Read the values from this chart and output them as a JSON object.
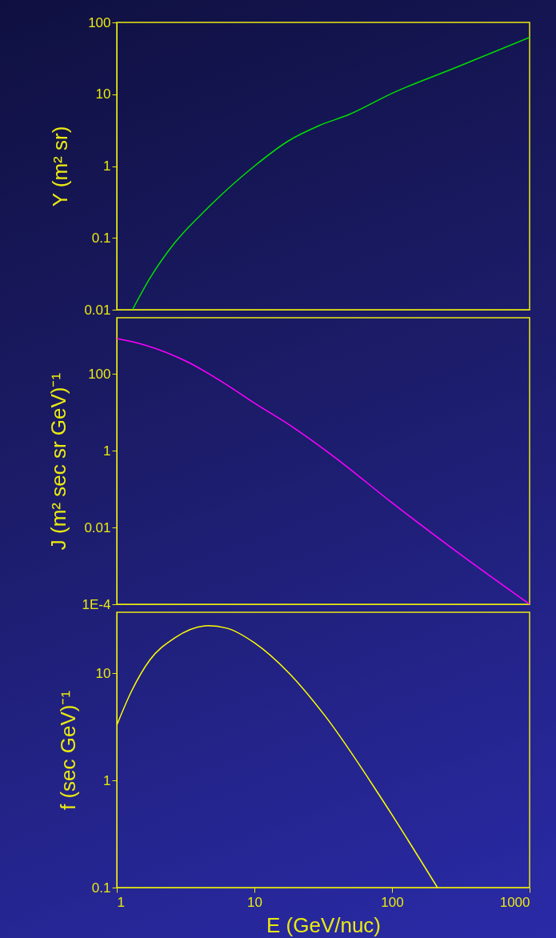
{
  "chart_data": [
    {
      "type": "line",
      "ylabel": "Y (m² sr)",
      "log": "xy",
      "xlim": [
        1,
        1000
      ],
      "xticks": [
        1,
        10,
        100,
        1000
      ],
      "ylim": [
        0.01,
        100
      ],
      "yticks": [
        0.01,
        0.1,
        1,
        10,
        100
      ],
      "tick_labels": "y",
      "series": [
        {
          "color": "#00e000",
          "x": [
            1.3,
            1.74,
            2.63,
            4.39,
            10,
            17.6,
            29.5,
            49.2,
            100,
            297,
            1000
          ],
          "values": [
            0.01,
            0.0274,
            0.085,
            0.241,
            1.0,
            2.23,
            3.65,
            5.26,
            10.3,
            23.9,
            62
          ]
        }
      ]
    },
    {
      "type": "line",
      "ylabel": "J (m² sec sr GeV)⁻¹",
      "log": "xy",
      "xlim": [
        1,
        1000
      ],
      "xticks": [
        1,
        10,
        100,
        1000
      ],
      "ylim": [
        0.0001,
        2900
      ],
      "yticks": [
        {
          "value": 0.0001,
          "label": "1E-4"
        },
        0.01,
        1,
        100
      ],
      "tick_labels": "y",
      "series": [
        {
          "color": "#ff00ff",
          "x": [
            1,
            1.57,
            3.23,
            6.3,
            10,
            18.5,
            38,
            100,
            297,
            1000
          ],
          "values": [
            830,
            575,
            209,
            52,
            17.4,
            4.37,
            0.69,
            0.044,
            0.0023,
            0.0001
          ]
        }
      ]
    },
    {
      "type": "line",
      "ylabel": "f (sec GeV)⁻¹",
      "xlabel": "E (GeV/nuc)",
      "log": "xy",
      "xlim": [
        1,
        1000
      ],
      "xticks": [
        1,
        10,
        100,
        1000
      ],
      "ylim": [
        0.1,
        37
      ],
      "yticks": [
        0.1,
        1,
        10
      ],
      "series": [
        {
          "color": "#ffff00",
          "x": [
            1,
            1.28,
            1.74,
            2.63,
            4.6,
            6.3,
            10,
            17.6,
            32.6,
            85,
            214
          ],
          "values": [
            3.28,
            6.8,
            13.3,
            21.3,
            27.7,
            26.3,
            19.2,
            10.2,
            4.0,
            0.66,
            0.1
          ]
        }
      ]
    }
  ]
}
